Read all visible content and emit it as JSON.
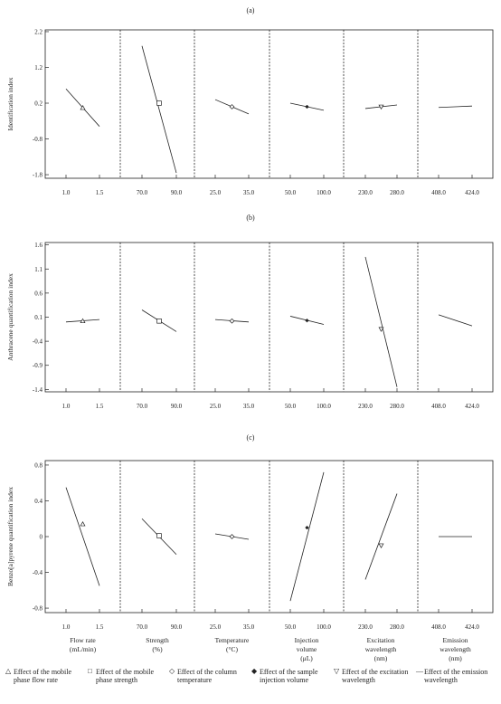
{
  "factor_labels": [
    [
      "Flow rate",
      "(mL/min)"
    ],
    [
      "Strength",
      "(%)"
    ],
    [
      "Temperature",
      "(°C)"
    ],
    [
      "Injection",
      "volume",
      "(μL)"
    ],
    [
      "Excitation",
      "wavelength",
      "(nm)"
    ],
    [
      "Emission",
      "wavelength",
      "(nm)"
    ]
  ],
  "legend": [
    {
      "symbol": "triangle",
      "label": "Effect of the mobile phase flow rate"
    },
    {
      "symbol": "square",
      "label": "Effect of the mobile phase strength"
    },
    {
      "symbol": "diamond",
      "label": "Effect of the column temperature"
    },
    {
      "symbol": "diamond-filled",
      "label": "Effect of the sample injection volume"
    },
    {
      "symbol": "triangle-down",
      "label": "Effect of the excitation wavelength"
    },
    {
      "symbol": "line",
      "label": "Effect of the emission wavelength"
    }
  ],
  "chart_data": [
    {
      "panel": "(a)",
      "type": "line",
      "ylabel": "Identification index",
      "ylim": [
        -1.9,
        2.25
      ],
      "yticks": [
        2.2,
        1.2,
        0.2,
        -0.8,
        -1.8
      ],
      "ytick_labels": [
        "2.2",
        "1.2",
        "0.2",
        "-0.8",
        "-1.8"
      ],
      "factors": [
        {
          "xticks": [
            "1.0",
            "1.5"
          ],
          "x": [
            1.0,
            1.5
          ],
          "y": [
            0.6,
            -0.45
          ],
          "center": [
            1.25,
            0.07
          ],
          "marker": "triangle"
        },
        {
          "xticks": [
            "70.0",
            "90.0"
          ],
          "x": [
            70.0,
            90.0
          ],
          "y": [
            1.8,
            -1.75
          ],
          "center": [
            80.0,
            0.2
          ],
          "marker": "square"
        },
        {
          "xticks": [
            "25.0",
            "35.0"
          ],
          "x": [
            25.0,
            35.0
          ],
          "y": [
            0.3,
            -0.1
          ],
          "center": [
            30.0,
            0.1
          ],
          "marker": "diamond"
        },
        {
          "xticks": [
            "50.0",
            "100.0"
          ],
          "x": [
            50.0,
            100.0
          ],
          "y": [
            0.2,
            0.0
          ],
          "center": [
            75.0,
            0.1
          ],
          "marker": "diamond-filled"
        },
        {
          "xticks": [
            "230.0",
            "280.0"
          ],
          "x": [
            230.0,
            280.0
          ],
          "y": [
            0.05,
            0.15
          ],
          "center": [
            255.0,
            0.1
          ],
          "marker": "triangle-down"
        },
        {
          "xticks": [
            "408.0",
            "424.0"
          ],
          "x": [
            408.0,
            424.0
          ],
          "y": [
            0.08,
            0.12
          ],
          "center": null,
          "marker": "line"
        }
      ]
    },
    {
      "panel": "(b)",
      "type": "line",
      "ylabel": "Anthracene quantification index",
      "ylim": [
        -1.45,
        1.65
      ],
      "yticks": [
        1.6,
        1.1,
        0.6,
        0.1,
        -0.4,
        -0.9,
        -1.4
      ],
      "ytick_labels": [
        "1.6",
        "1.1",
        "0.6",
        "0.1",
        "-0.4",
        "-0.9",
        "-1.4"
      ],
      "factors": [
        {
          "xticks": [
            "1.0",
            "1.5"
          ],
          "x": [
            1.0,
            1.5
          ],
          "y": [
            0.0,
            0.05
          ],
          "center": [
            1.25,
            0.02
          ],
          "marker": "triangle"
        },
        {
          "xticks": [
            "70.0",
            "90.0"
          ],
          "x": [
            70.0,
            90.0
          ],
          "y": [
            0.25,
            -0.2
          ],
          "center": [
            80.0,
            0.02
          ],
          "marker": "square"
        },
        {
          "xticks": [
            "25.0",
            "35.0"
          ],
          "x": [
            25.0,
            35.0
          ],
          "y": [
            0.05,
            0.0
          ],
          "center": [
            30.0,
            0.02
          ],
          "marker": "diamond"
        },
        {
          "xticks": [
            "50.0",
            "100.0"
          ],
          "x": [
            50.0,
            100.0
          ],
          "y": [
            0.12,
            -0.05
          ],
          "center": [
            75.0,
            0.03
          ],
          "marker": "diamond-filled"
        },
        {
          "xticks": [
            "230.0",
            "280.0"
          ],
          "x": [
            230.0,
            280.0
          ],
          "y": [
            1.35,
            -1.35
          ],
          "center": [
            255.0,
            -0.15
          ],
          "marker": "triangle-down"
        },
        {
          "xticks": [
            "408.0",
            "424.0"
          ],
          "x": [
            408.0,
            424.0
          ],
          "y": [
            0.15,
            -0.08
          ],
          "center": null,
          "marker": "line"
        }
      ]
    },
    {
      "panel": "(c)",
      "type": "line",
      "ylabel": "Benzo[a]pyrene quantification index",
      "ylim": [
        -0.85,
        0.85
      ],
      "yticks": [
        0.8,
        0.4,
        0.0,
        -0.4,
        -0.8
      ],
      "ytick_labels": [
        "0.8",
        "0.4",
        "0",
        "-0.4",
        "-0.8"
      ],
      "factors": [
        {
          "xticks": [
            "1.0",
            "1.5"
          ],
          "x": [
            1.0,
            1.5
          ],
          "y": [
            0.55,
            -0.55
          ],
          "center": [
            1.25,
            0.14
          ],
          "marker": "triangle"
        },
        {
          "xticks": [
            "70.0",
            "90.0"
          ],
          "x": [
            70.0,
            90.0
          ],
          "y": [
            0.2,
            -0.2
          ],
          "center": [
            80.0,
            0.01
          ],
          "marker": "square"
        },
        {
          "xticks": [
            "25.0",
            "35.0"
          ],
          "x": [
            25.0,
            35.0
          ],
          "y": [
            0.03,
            -0.03
          ],
          "center": [
            30.0,
            0.0
          ],
          "marker": "diamond"
        },
        {
          "xticks": [
            "50.0",
            "100.0"
          ],
          "x": [
            50.0,
            100.0
          ],
          "y": [
            -0.72,
            0.72
          ],
          "center": [
            75.0,
            0.1
          ],
          "marker": "diamond-filled"
        },
        {
          "xticks": [
            "230.0",
            "280.0"
          ],
          "x": [
            230.0,
            280.0
          ],
          "y": [
            -0.48,
            0.48
          ],
          "center": [
            255.0,
            -0.1
          ],
          "marker": "triangle-down"
        },
        {
          "xticks": [
            "408.0",
            "424.0"
          ],
          "x": [
            408.0,
            424.0
          ],
          "y": [
            0.0,
            0.0
          ],
          "center": null,
          "marker": "line"
        }
      ]
    }
  ]
}
